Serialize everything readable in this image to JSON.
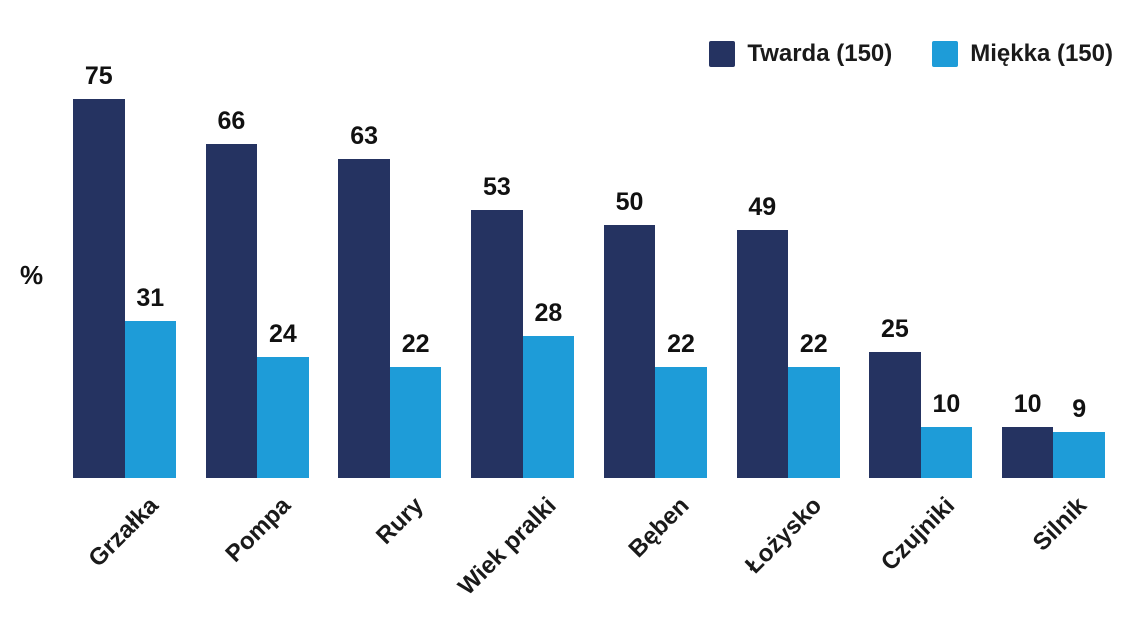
{
  "chart_data": {
    "type": "bar",
    "title": "",
    "xlabel": "",
    "ylabel": "%",
    "categories": [
      "Grzałka",
      "Pompa",
      "Rury",
      "Wiek pralki",
      "Bęben",
      "Łożysko",
      "Czujniki",
      "Silnik"
    ],
    "series": [
      {
        "name": "Twarda (150)",
        "color": "#253361",
        "values": [
          75,
          66,
          63,
          53,
          50,
          49,
          25,
          10
        ]
      },
      {
        "name": "Miękka (150)",
        "color": "#1E9CD8",
        "values": [
          31,
          24,
          22,
          28,
          22,
          22,
          10,
          9
        ]
      }
    ],
    "ylim": [
      0,
      80
    ],
    "grid": false,
    "axis_lines": false,
    "legend_position": "top-right",
    "value_labels": "above-bars",
    "xtick_rotation_deg": 45,
    "text_color": "#111111",
    "background_color": "#ffffff"
  }
}
